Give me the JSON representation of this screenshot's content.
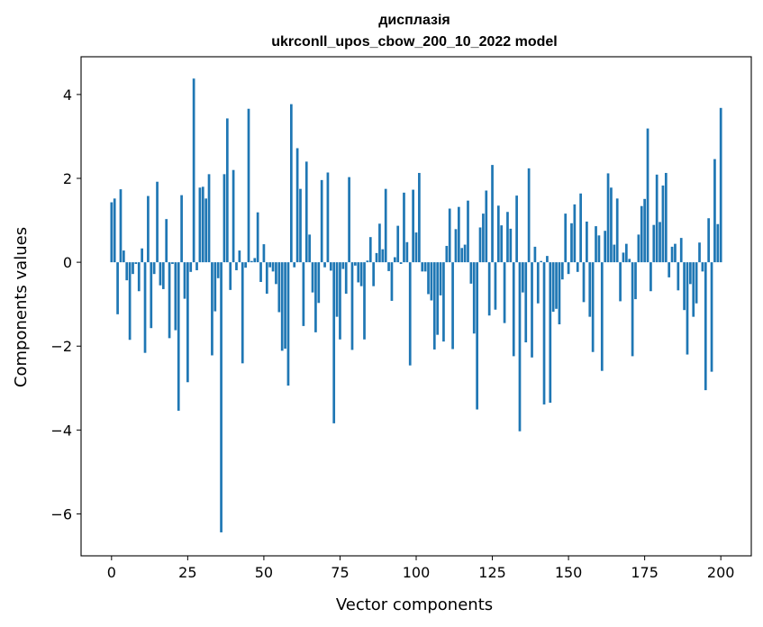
{
  "chart_data": {
    "type": "bar",
    "title_line1": "дисплазія",
    "title_line2": "ukrconll_upos_cbow_200_10_2022 model",
    "xlabel": "Vector components",
    "ylabel": "Components values",
    "xlim": [
      -10,
      210
    ],
    "ylim": [
      -7.0,
      4.9
    ],
    "xticks": [
      0,
      25,
      50,
      75,
      100,
      125,
      150,
      175,
      200
    ],
    "xtick_labels": [
      "0",
      "25",
      "50",
      "75",
      "100",
      "125",
      "150",
      "175",
      "200"
    ],
    "yticks": [
      -6,
      -4,
      -2,
      0,
      2,
      4
    ],
    "ytick_labels": [
      "−6",
      "−4",
      "−2",
      "0",
      "2",
      "4"
    ],
    "bar_color": "#1f77b4",
    "values": [
      1.43,
      1.52,
      -1.24,
      1.74,
      0.28,
      -0.43,
      -1.85,
      -0.28,
      -0.04,
      -0.69,
      0.33,
      -2.16,
      1.58,
      -1.57,
      -0.28,
      1.92,
      -0.55,
      -0.64,
      1.03,
      -1.81,
      -0.04,
      -1.62,
      -3.54,
      1.6,
      -0.87,
      -2.86,
      -0.23,
      4.38,
      -0.19,
      1.78,
      1.8,
      1.52,
      2.1,
      -2.22,
      -1.17,
      -0.38,
      -6.44,
      2.1,
      3.43,
      -0.66,
      2.2,
      -0.19,
      0.28,
      -2.41,
      -0.13,
      3.66,
      0.03,
      0.1,
      1.19,
      -0.47,
      0.43,
      -0.75,
      -0.12,
      -0.22,
      -0.52,
      -1.19,
      -2.11,
      -2.06,
      -2.94,
      3.77,
      -0.12,
      2.72,
      1.75,
      -1.52,
      2.4,
      0.66,
      -0.72,
      -1.67,
      -0.97,
      1.96,
      -0.12,
      2.14,
      -0.2,
      -3.84,
      -1.3,
      -1.84,
      -0.16,
      -0.75,
      2.03,
      -2.09,
      -0.08,
      -0.48,
      -0.57,
      -1.84,
      0.04,
      0.6,
      -0.57,
      0.22,
      0.92,
      0.31,
      1.75,
      -0.21,
      -0.92,
      0.12,
      0.87,
      -0.04,
      1.66,
      0.48,
      -2.46,
      1.73,
      0.71,
      2.13,
      -0.22,
      -0.22,
      -0.76,
      -0.91,
      -2.08,
      -1.73,
      -0.79,
      -1.89,
      0.39,
      1.28,
      -2.07,
      0.79,
      1.32,
      0.34,
      0.42,
      1.47,
      -0.51,
      -1.7,
      -3.51,
      0.83,
      1.16,
      1.71,
      -1.27,
      2.32,
      -1.13,
      1.35,
      0.88,
      -1.45,
      1.2,
      0.8,
      -2.24,
      1.59,
      -4.03,
      -0.72,
      -1.91,
      2.24,
      -2.27,
      0.37,
      -0.98,
      0.03,
      -3.39,
      0.15,
      -3.35,
      -1.18,
      -1.11,
      -1.48,
      -0.41,
      1.16,
      -0.28,
      0.93,
      1.38,
      -0.23,
      1.64,
      -0.95,
      0.97,
      -1.3,
      -2.14,
      0.86,
      0.64,
      -2.59,
      0.75,
      2.12,
      1.78,
      0.42,
      1.52,
      -0.93,
      0.23,
      0.44,
      0.08,
      -2.24,
      -0.88,
      0.66,
      1.34,
      1.51,
      3.19,
      -0.69,
      0.89,
      2.09,
      0.96,
      1.83,
      2.13,
      -0.36,
      0.37,
      0.44,
      -0.67,
      0.58,
      -1.14,
      -2.2,
      -0.52,
      -1.3,
      -0.98,
      0.47,
      -0.22,
      -3.05,
      1.05,
      -2.61,
      2.46,
      0.91,
      3.68
    ]
  }
}
